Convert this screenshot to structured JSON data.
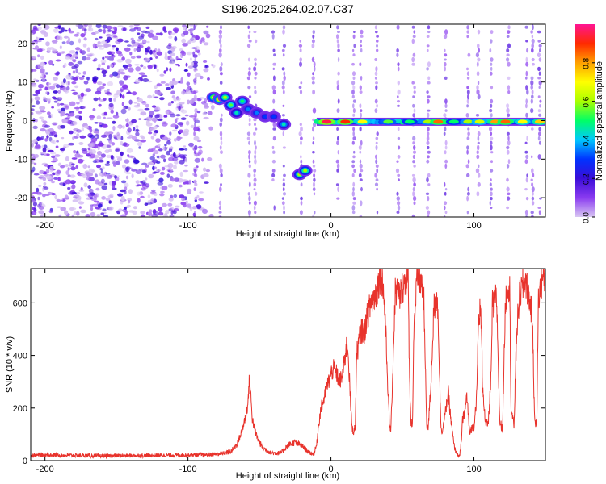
{
  "figure_title": "S196.2025.264.02.07.C37",
  "chart_data": [
    {
      "type": "heatmap",
      "title": "S196.2025.264.02.07.C37",
      "xlabel": "Height of straight line (km)",
      "ylabel": "Frequency (Hz)",
      "xlim": [
        -210,
        150
      ],
      "ylim": [
        -25,
        25
      ],
      "xticks": [
        -200,
        -100,
        0,
        100
      ],
      "yticks": [
        20,
        10,
        0,
        -10,
        -20
      ],
      "colorbar": {
        "label": "Normalized spectral amplitude",
        "range": [
          0,
          1
        ],
        "ticks": [
          "0.0",
          "0.2",
          "0.4",
          "0.6",
          "0.8"
        ],
        "tick_values": [
          0,
          0.2,
          0.4,
          0.6,
          0.8
        ],
        "colormap": [
          "#d9c7f2",
          "#8a3bf0",
          "#3a0dd8",
          "#0033ff",
          "#00c8ff",
          "#00ff66",
          "#aaff00",
          "#ffff00",
          "#ffa000",
          "#ff2a00",
          "#ff1493"
        ]
      },
      "features": {
        "noise_region_x": [
          -210,
          -95
        ],
        "track_segments": [
          {
            "x": -82,
            "y": 6,
            "amp": 0.7
          },
          {
            "x": -78,
            "y": 5.5,
            "amp": 0.75
          },
          {
            "x": -74,
            "y": 6,
            "amp": 0.6
          },
          {
            "x": -70,
            "y": 4,
            "amp": 0.55
          },
          {
            "x": -66,
            "y": 2,
            "amp": 0.45
          },
          {
            "x": -62,
            "y": 5,
            "amp": 0.5
          },
          {
            "x": -58,
            "y": 3,
            "amp": 0.35
          },
          {
            "x": -52,
            "y": 2,
            "amp": 0.35
          },
          {
            "x": -46,
            "y": 1,
            "amp": 0.3
          },
          {
            "x": -40,
            "y": 1,
            "amp": 0.3
          },
          {
            "x": -33,
            "y": -1,
            "amp": 0.45
          },
          {
            "x": -22,
            "y": -14,
            "amp": 0.6
          },
          {
            "x": -18,
            "y": -13,
            "amp": 0.6
          }
        ],
        "carrier_line": {
          "y": -0.3,
          "x_start": -10,
          "x_end": 150
        },
        "carrier_peaks": [
          {
            "x": -3,
            "amp": 0.95
          },
          {
            "x": 10,
            "amp": 0.9
          },
          {
            "x": 22,
            "amp": 0.7
          },
          {
            "x": 40,
            "amp": 0.55
          },
          {
            "x": 55,
            "amp": 0.5
          },
          {
            "x": 68,
            "amp": 0.6
          },
          {
            "x": 75,
            "amp": 0.85
          },
          {
            "x": 86,
            "amp": 0.5
          },
          {
            "x": 96,
            "amp": 0.6
          },
          {
            "x": 104,
            "amp": 0.65
          },
          {
            "x": 115,
            "amp": 0.8
          },
          {
            "x": 122,
            "amp": 0.85
          },
          {
            "x": 134,
            "amp": 0.7
          },
          {
            "x": 146,
            "amp": 0.75
          }
        ],
        "vertical_streaks_x": [
          -95,
          -77,
          -57,
          -53,
          -40,
          -33,
          -21,
          -12,
          5,
          16,
          21,
          32,
          47,
          58,
          68,
          80,
          96,
          103,
          112,
          124,
          137,
          141,
          146
        ]
      }
    },
    {
      "type": "line",
      "xlabel": "Height of straight line (km)",
      "ylabel": "SNR (10 * v/v)",
      "xlim": [
        -210,
        150
      ],
      "ylim": [
        0,
        730
      ],
      "xticks": [
        -200,
        -100,
        0,
        100
      ],
      "yticks": [
        0,
        200,
        400,
        600
      ],
      "color": "#e8332c",
      "series": [
        {
          "name": "SNR",
          "x": [
            -210,
            -200,
            -180,
            -160,
            -140,
            -120,
            -100,
            -90,
            -80,
            -75,
            -70,
            -66,
            -63,
            -60,
            -58,
            -57,
            -56,
            -55,
            -53,
            -51,
            -48,
            -45,
            -42,
            -38,
            -35,
            -33,
            -30,
            -25,
            -20,
            -17,
            -15,
            -12,
            -10,
            -9,
            -7,
            -5,
            -3,
            -1,
            0,
            2,
            4,
            6,
            8,
            10,
            11,
            12,
            13,
            14,
            15,
            16,
            17,
            18,
            20,
            22,
            23,
            25,
            28,
            30,
            32,
            34,
            36,
            38,
            40,
            41,
            42,
            43,
            45,
            47,
            48,
            50,
            52,
            54,
            55,
            56,
            57,
            58,
            60,
            62,
            64,
            65,
            66,
            67,
            68,
            70,
            72,
            74,
            75,
            76,
            77,
            78,
            80,
            82,
            84,
            86,
            87,
            88,
            89,
            90,
            91,
            92,
            94,
            95,
            96,
            97,
            98,
            100,
            102,
            103,
            104,
            105,
            106,
            108,
            110,
            112,
            113,
            114,
            115,
            116,
            118,
            120,
            122,
            123,
            124,
            125,
            126,
            128,
            130,
            132,
            134,
            136,
            138,
            140,
            141,
            142,
            143,
            144,
            145,
            146,
            147,
            148,
            150
          ],
          "values": [
            20,
            22,
            20,
            18,
            19,
            20,
            22,
            22,
            25,
            28,
            35,
            60,
            100,
            160,
            220,
            310,
            240,
            160,
            110,
            80,
            50,
            40,
            30,
            28,
            30,
            40,
            60,
            70,
            55,
            40,
            30,
            25,
            60,
            120,
            200,
            230,
            280,
            310,
            330,
            350,
            330,
            300,
            320,
            400,
            440,
            420,
            300,
            180,
            120,
            110,
            130,
            400,
            470,
            500,
            480,
            540,
            600,
            620,
            640,
            700,
            690,
            540,
            250,
            130,
            120,
            300,
            640,
            650,
            620,
            660,
            680,
            700,
            300,
            150,
            130,
            500,
            680,
            690,
            660,
            600,
            350,
            140,
            120,
            300,
            580,
            620,
            560,
            300,
            130,
            110,
            180,
            260,
            150,
            60,
            40,
            30,
            20,
            15,
            60,
            150,
            200,
            250,
            180,
            100,
            120,
            130,
            250,
            500,
            570,
            540,
            300,
            140,
            140,
            320,
            600,
            580,
            620,
            600,
            150,
            120,
            600,
            640,
            680,
            650,
            200,
            130,
            500,
            630,
            660,
            690,
            630,
            580,
            520,
            250,
            130,
            150,
            600,
            640,
            670,
            690,
            700
          ]
        }
      ]
    }
  ]
}
